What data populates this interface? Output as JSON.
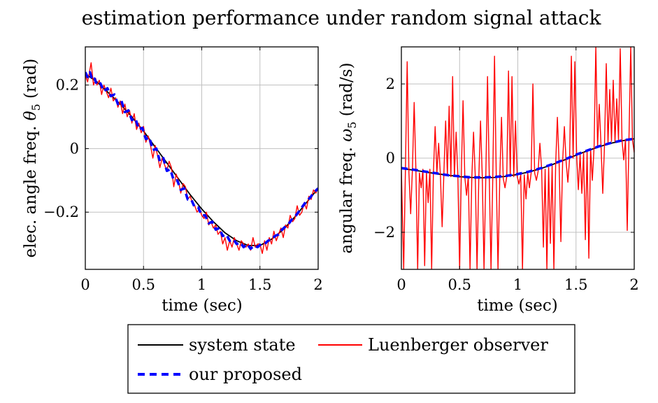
{
  "figure": {
    "title": "estimation performance under random signal attack"
  },
  "legend": {
    "entries": [
      {
        "label": "system state",
        "color": "#000000",
        "style": "solid"
      },
      {
        "label": "Luenberger observer",
        "color": "#ff0000",
        "style": "solid"
      },
      {
        "label": "our proposed",
        "color": "#0000ff",
        "style": "dashed"
      }
    ]
  },
  "chart_data": [
    {
      "type": "line",
      "xlabel": "time (sec)",
      "ylabel_prefix": "elec. angle freq. ",
      "ylabel_symbol": "θ",
      "ylabel_sub": "5",
      "ylabel_suffix": " (rad)",
      "xlim": [
        0,
        2
      ],
      "ylim": [
        -0.38,
        0.32
      ],
      "xticks": [
        0,
        0.5,
        1,
        1.5,
        2
      ],
      "xtick_labels": [
        "0",
        "0.5",
        "1",
        "1.5",
        "2"
      ],
      "yticks": [
        -0.2,
        0,
        0.2
      ],
      "ytick_labels": [
        "−0.2",
        "0",
        "0.2"
      ],
      "grid": true,
      "series": [
        {
          "name": "system state",
          "color": "#000000",
          "x": [
            0,
            0.1,
            0.2,
            0.3,
            0.4,
            0.5,
            0.6,
            0.7,
            0.8,
            0.9,
            1.0,
            1.1,
            1.2,
            1.3,
            1.4,
            1.5,
            1.6,
            1.7,
            1.8,
            1.9,
            2.0
          ],
          "y": [
            0.235,
            0.21,
            0.175,
            0.14,
            0.1,
            0.055,
            0.005,
            -0.045,
            -0.095,
            -0.145,
            -0.19,
            -0.23,
            -0.265,
            -0.29,
            -0.305,
            -0.305,
            -0.285,
            -0.255,
            -0.215,
            -0.17,
            -0.125
          ]
        },
        {
          "name": "Luenberger observer",
          "color": "#ff0000",
          "x": [
            0,
            0.02,
            0.04,
            0.05,
            0.07,
            0.09,
            0.1,
            0.12,
            0.14,
            0.16,
            0.18,
            0.2,
            0.22,
            0.24,
            0.26,
            0.28,
            0.3,
            0.32,
            0.34,
            0.36,
            0.38,
            0.4,
            0.42,
            0.44,
            0.46,
            0.48,
            0.5,
            0.52,
            0.54,
            0.56,
            0.58,
            0.6,
            0.62,
            0.64,
            0.66,
            0.68,
            0.7,
            0.72,
            0.74,
            0.76,
            0.78,
            0.8,
            0.82,
            0.84,
            0.86,
            0.88,
            0.9,
            0.92,
            0.94,
            0.96,
            0.98,
            1.0,
            1.02,
            1.04,
            1.06,
            1.08,
            1.1,
            1.12,
            1.14,
            1.16,
            1.18,
            1.2,
            1.22,
            1.24,
            1.26,
            1.28,
            1.3,
            1.32,
            1.34,
            1.36,
            1.38,
            1.4,
            1.42,
            1.44,
            1.46,
            1.48,
            1.5,
            1.52,
            1.54,
            1.56,
            1.58,
            1.6,
            1.62,
            1.64,
            1.66,
            1.68,
            1.7,
            1.72,
            1.74,
            1.76,
            1.78,
            1.8,
            1.82,
            1.84,
            1.86,
            1.88,
            1.9,
            1.92,
            1.94,
            1.96,
            1.98,
            2.0
          ],
          "y": [
            0.23,
            0.21,
            0.25,
            0.27,
            0.2,
            0.22,
            0.2,
            0.215,
            0.17,
            0.2,
            0.18,
            0.16,
            0.19,
            0.15,
            0.16,
            0.13,
            0.15,
            0.11,
            0.14,
            0.1,
            0.12,
            0.08,
            0.11,
            0.06,
            0.08,
            0.05,
            0.07,
            0.02,
            0.04,
            0.01,
            -0.03,
            0.01,
            -0.02,
            -0.06,
            -0.03,
            -0.05,
            -0.07,
            -0.04,
            -0.06,
            -0.12,
            -0.08,
            -0.1,
            -0.14,
            -0.11,
            -0.12,
            -0.16,
            -0.15,
            -0.17,
            -0.18,
            -0.2,
            -0.19,
            -0.21,
            -0.22,
            -0.2,
            -0.24,
            -0.23,
            -0.25,
            -0.24,
            -0.27,
            -0.26,
            -0.3,
            -0.28,
            -0.32,
            -0.29,
            -0.31,
            -0.28,
            -0.3,
            -0.32,
            -0.29,
            -0.3,
            -0.31,
            -0.3,
            -0.32,
            -0.28,
            -0.31,
            -0.3,
            -0.3,
            -0.33,
            -0.29,
            -0.32,
            -0.28,
            -0.3,
            -0.26,
            -0.29,
            -0.27,
            -0.25,
            -0.28,
            -0.24,
            -0.25,
            -0.21,
            -0.23,
            -0.22,
            -0.18,
            -0.21,
            -0.2,
            -0.17,
            -0.19,
            -0.15,
            -0.16,
            -0.13,
            -0.14,
            -0.125
          ]
        },
        {
          "name": "our proposed",
          "color": "#0000ff",
          "x": [
            0,
            0.02,
            0.04,
            0.06,
            0.08,
            0.1,
            0.13,
            0.16,
            0.19,
            0.22,
            0.25,
            0.28,
            0.31,
            0.34,
            0.37,
            0.4,
            0.43,
            0.46,
            0.49,
            0.52,
            0.55,
            0.58,
            0.61,
            0.64,
            0.67,
            0.7,
            0.73,
            0.76,
            0.79,
            0.82,
            0.85,
            0.88,
            0.91,
            0.94,
            0.97,
            1.0,
            1.03,
            1.06,
            1.09,
            1.12,
            1.15,
            1.18,
            1.21,
            1.24,
            1.27,
            1.3,
            1.33,
            1.36,
            1.39,
            1.42,
            1.45,
            1.48,
            1.51,
            1.54,
            1.57,
            1.6,
            1.63,
            1.66,
            1.69,
            1.72,
            1.75,
            1.78,
            1.81,
            1.84,
            1.87,
            1.9,
            1.93,
            1.96,
            2.0
          ],
          "y": [
            0.24,
            0.225,
            0.24,
            0.215,
            0.22,
            0.2,
            0.205,
            0.18,
            0.19,
            0.165,
            0.17,
            0.14,
            0.15,
            0.115,
            0.12,
            0.09,
            0.095,
            0.06,
            0.065,
            0.03,
            0.035,
            -0.005,
            0.0,
            -0.04,
            -0.03,
            -0.07,
            -0.065,
            -0.1,
            -0.1,
            -0.13,
            -0.125,
            -0.16,
            -0.16,
            -0.185,
            -0.185,
            -0.21,
            -0.21,
            -0.235,
            -0.23,
            -0.255,
            -0.25,
            -0.275,
            -0.27,
            -0.29,
            -0.285,
            -0.3,
            -0.295,
            -0.31,
            -0.3,
            -0.315,
            -0.305,
            -0.31,
            -0.3,
            -0.3,
            -0.29,
            -0.285,
            -0.275,
            -0.27,
            -0.255,
            -0.245,
            -0.235,
            -0.22,
            -0.21,
            -0.195,
            -0.18,
            -0.165,
            -0.155,
            -0.14,
            -0.125
          ]
        }
      ]
    },
    {
      "type": "line",
      "xlabel": "time (sec)",
      "ylabel_prefix": "angular freq. ",
      "ylabel_symbol": "ω",
      "ylabel_sub": "5",
      "ylabel_suffix": " (rad/s)",
      "xlim": [
        0,
        2
      ],
      "ylim": [
        -3,
        3
      ],
      "xticks": [
        0,
        0.5,
        1,
        1.5,
        2
      ],
      "xtick_labels": [
        "0",
        "0.5",
        "1",
        "1.5",
        "2"
      ],
      "yticks": [
        -2,
        0,
        2
      ],
      "ytick_labels": [
        "−2",
        "0",
        "2"
      ],
      "grid": true,
      "series": [
        {
          "name": "system state",
          "color": "#000000",
          "x": [
            0,
            0.1,
            0.2,
            0.3,
            0.4,
            0.5,
            0.6,
            0.7,
            0.8,
            0.9,
            1.0,
            1.1,
            1.2,
            1.3,
            1.4,
            1.5,
            1.6,
            1.7,
            1.8,
            1.9,
            2.0
          ],
          "y": [
            -0.28,
            -0.32,
            -0.37,
            -0.42,
            -0.46,
            -0.5,
            -0.52,
            -0.53,
            -0.52,
            -0.49,
            -0.44,
            -0.37,
            -0.28,
            -0.17,
            -0.05,
            0.08,
            0.2,
            0.31,
            0.4,
            0.47,
            0.52
          ]
        },
        {
          "name": "Luenberger observer",
          "color": "#ff0000",
          "x": [
            0,
            0.02,
            0.035,
            0.05,
            0.065,
            0.08,
            0.095,
            0.11,
            0.125,
            0.14,
            0.155,
            0.17,
            0.185,
            0.2,
            0.215,
            0.23,
            0.245,
            0.26,
            0.275,
            0.29,
            0.305,
            0.32,
            0.335,
            0.35,
            0.365,
            0.38,
            0.395,
            0.41,
            0.425,
            0.44,
            0.455,
            0.47,
            0.485,
            0.5,
            0.515,
            0.53,
            0.545,
            0.56,
            0.575,
            0.59,
            0.605,
            0.62,
            0.635,
            0.65,
            0.665,
            0.68,
            0.695,
            0.71,
            0.725,
            0.74,
            0.755,
            0.77,
            0.785,
            0.8,
            0.815,
            0.83,
            0.845,
            0.86,
            0.875,
            0.89,
            0.905,
            0.92,
            0.935,
            0.95,
            0.965,
            0.98,
            0.995,
            1.01,
            1.025,
            1.04,
            1.055,
            1.07,
            1.085,
            1.1,
            1.115,
            1.13,
            1.145,
            1.16,
            1.175,
            1.19,
            1.205,
            1.22,
            1.235,
            1.25,
            1.265,
            1.28,
            1.295,
            1.31,
            1.325,
            1.34,
            1.355,
            1.37,
            1.385,
            1.4,
            1.415,
            1.43,
            1.445,
            1.46,
            1.475,
            1.49,
            1.505,
            1.52,
            1.535,
            1.55,
            1.565,
            1.58,
            1.595,
            1.61,
            1.625,
            1.64,
            1.655,
            1.67,
            1.685,
            1.7,
            1.715,
            1.73,
            1.745,
            1.76,
            1.775,
            1.79,
            1.805,
            1.82,
            1.835,
            1.85,
            1.865,
            1.88,
            1.895,
            1.91,
            1.925,
            1.94,
            1.955,
            1.97,
            1.985,
            2.0
          ],
          "y": [
            -0.3,
            -3.0,
            -0.3,
            2.6,
            -0.4,
            -1.5,
            -0.3,
            1.5,
            -0.35,
            -3.0,
            -0.4,
            -0.8,
            -0.3,
            -2.9,
            -0.4,
            -1.2,
            -0.3,
            -3.0,
            -0.4,
            0.85,
            -0.4,
            0.4,
            -0.45,
            -1.85,
            -0.4,
            1.0,
            -0.45,
            1.4,
            -0.5,
            2.2,
            -0.5,
            0.7,
            -0.5,
            -3.0,
            -0.45,
            1.55,
            -0.5,
            -1.0,
            -0.5,
            -3.0,
            -0.55,
            0.7,
            -0.5,
            -3.0,
            -0.55,
            1.0,
            -0.5,
            -3.0,
            -0.55,
            2.2,
            -0.5,
            -3.0,
            -0.55,
            2.75,
            -0.5,
            -3.0,
            -0.55,
            1.1,
            -0.55,
            -0.8,
            -0.5,
            2.35,
            -0.5,
            2.2,
            -0.5,
            1.0,
            -0.5,
            -0.7,
            -0.45,
            -3.0,
            -0.45,
            -1.1,
            -0.4,
            -0.8,
            -0.4,
            2.0,
            -0.4,
            -0.6,
            -0.35,
            0.4,
            -0.3,
            -2.4,
            -0.3,
            -3.0,
            -0.25,
            -2.3,
            -0.2,
            -3.0,
            -0.2,
            1.1,
            -0.15,
            -2.25,
            -0.1,
            0.85,
            -0.1,
            -0.65,
            0.0,
            2.75,
            0.0,
            2.6,
            0.1,
            -0.85,
            0.1,
            -0.95,
            0.15,
            -2.2,
            0.2,
            -2.7,
            0.25,
            -0.6,
            0.3,
            3.0,
            0.3,
            1.45,
            0.35,
            -0.95,
            0.35,
            2.55,
            0.4,
            1.85,
            0.45,
            2.1,
            0.45,
            1.6,
            0.5,
            2.95,
            0.5,
            -0.05,
            0.5,
            -1.95,
            0.55,
            3.0,
            0.5,
            0.15
          ]
        },
        {
          "name": "our proposed",
          "color": "#0000ff",
          "x": [
            0,
            0.1,
            0.2,
            0.3,
            0.4,
            0.5,
            0.6,
            0.7,
            0.8,
            0.9,
            1.0,
            1.1,
            1.2,
            1.3,
            1.4,
            1.5,
            1.6,
            1.7,
            1.8,
            1.9,
            2.0
          ],
          "y": [
            -0.27,
            -0.31,
            -0.36,
            -0.41,
            -0.46,
            -0.49,
            -0.52,
            -0.52,
            -0.51,
            -0.48,
            -0.43,
            -0.36,
            -0.27,
            -0.16,
            -0.04,
            0.09,
            0.21,
            0.32,
            0.41,
            0.48,
            0.52
          ]
        }
      ]
    }
  ]
}
